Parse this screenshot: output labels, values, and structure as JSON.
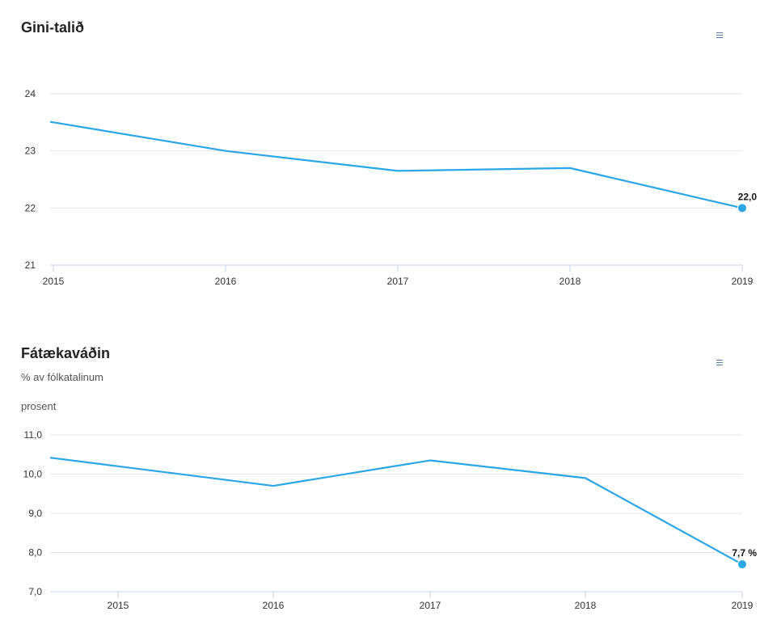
{
  "charts": [
    {
      "id": "chart1",
      "title": "Gini-talið",
      "colors": {
        "line": "#2aa6e8",
        "grid": "#e6e6e6",
        "axis": "#ccd6eb"
      },
      "icons": {
        "menu": "hamburger-menu-icon"
      },
      "chart_data": {
        "type": "line",
        "title": "Gini-talið",
        "x": [
          "2015",
          "2016",
          "2017",
          "2018",
          "2019"
        ],
        "series": [
          {
            "values": [
              23.5,
              23.0,
              22.65,
              22.7,
              22.0
            ]
          }
        ],
        "ylim": [
          21,
          24
        ],
        "yticks": [
          "21",
          "22",
          "23",
          "24"
        ],
        "last_point_label": "22,0",
        "grid": true,
        "legend": "none"
      }
    },
    {
      "id": "chart2",
      "title": "Fátækaváðin",
      "subtitle": "% av fólkatalinum",
      "ylabel": "prosent",
      "colors": {
        "line": "#2aa6e8",
        "grid": "#e6e6e6",
        "axis": "#ccd6eb"
      },
      "icons": {
        "menu": "hamburger-menu-icon"
      },
      "chart_data": {
        "type": "line",
        "title": "Fátækaváðin",
        "subtitle": "% av fólkatalinum",
        "ylabel": "prosent",
        "x": [
          "2015",
          "2016",
          "2017",
          "2018",
          "2019"
        ],
        "series": [
          {
            "values": [
              10.2,
              9.7,
              10.35,
              9.9,
              7.7
            ]
          }
        ],
        "ylim": [
          7.0,
          11.0
        ],
        "yticks": [
          "7,0",
          "8,0",
          "9,0",
          "10,0",
          "11,0"
        ],
        "last_point_label": "7,7 %",
        "grid": true,
        "legend": "none"
      }
    }
  ]
}
